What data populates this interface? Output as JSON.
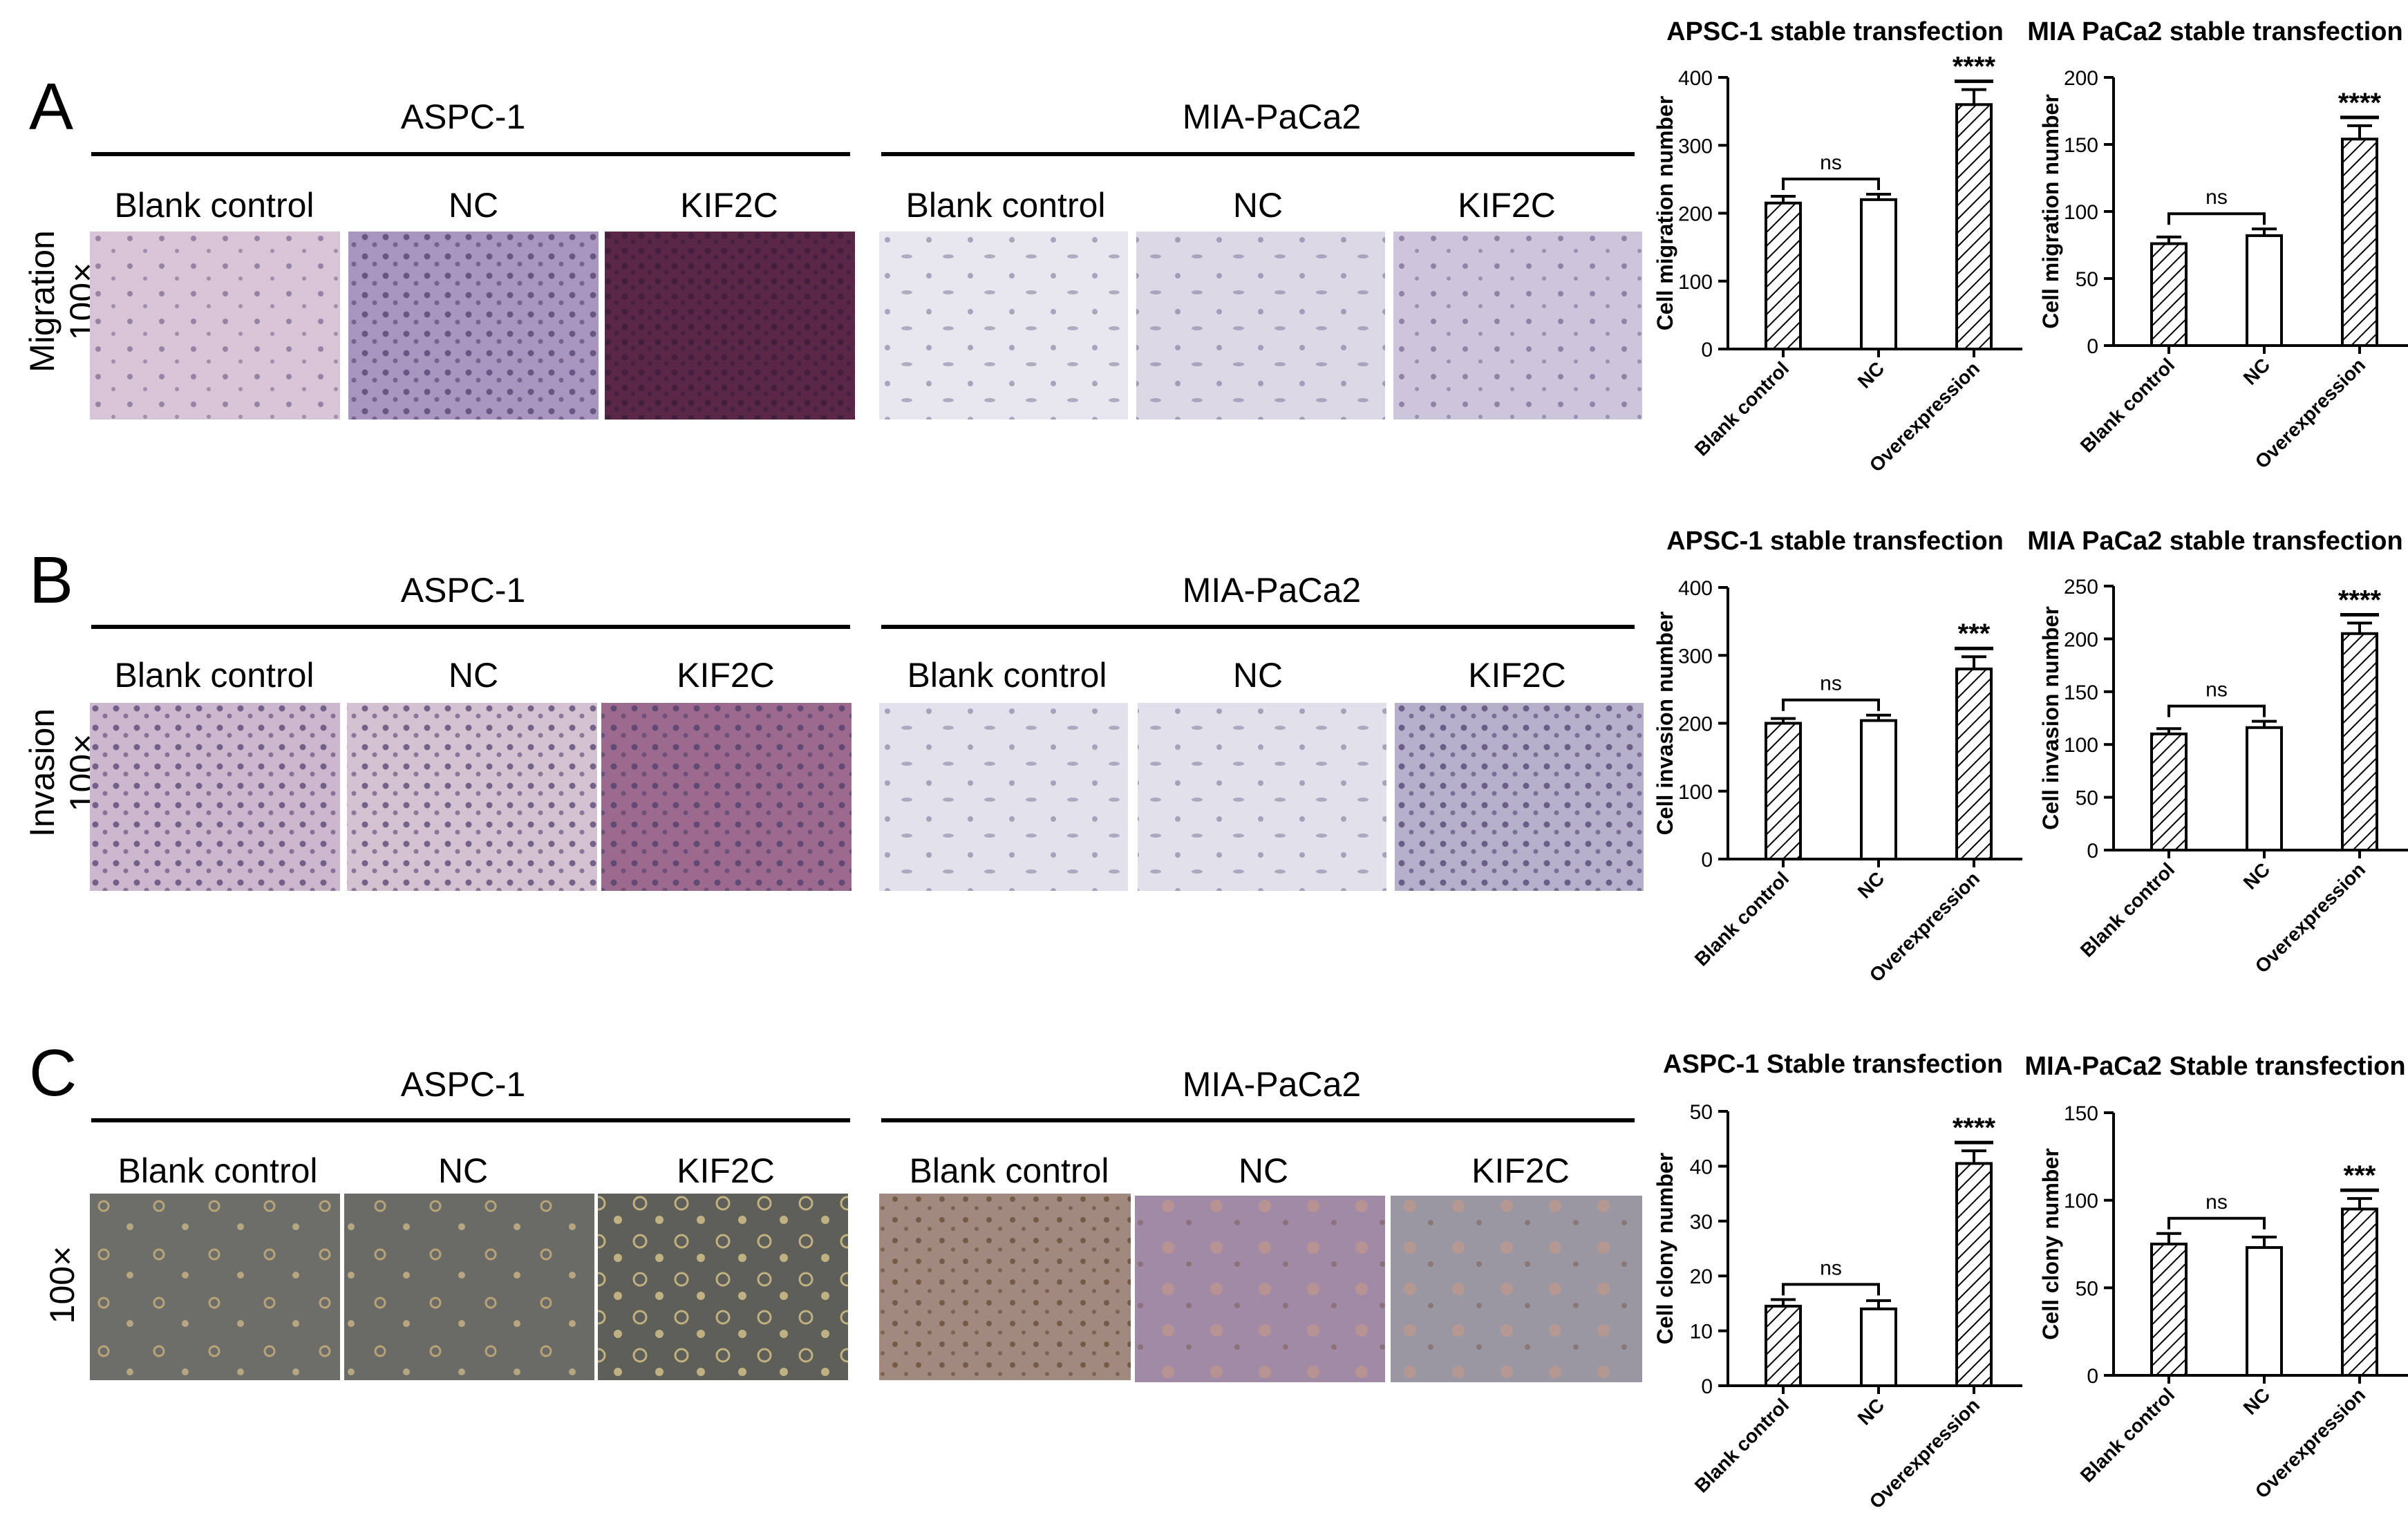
{
  "panels": [
    {
      "letter": "A",
      "row_label": [
        "Migration",
        "100×"
      ],
      "groups": [
        {
          "name": "ASPC-1",
          "columns": [
            "Blank control",
            "NC",
            "KIF2C"
          ]
        },
        {
          "name": "MIA-PaCa2",
          "columns": [
            "Blank control",
            "NC",
            "KIF2C"
          ]
        }
      ]
    },
    {
      "letter": "B",
      "row_label": [
        "Invasion",
        "100×"
      ],
      "groups": [
        {
          "name": "ASPC-1",
          "columns": [
            "Blank control",
            "NC",
            "KIF2C"
          ]
        },
        {
          "name": "MIA-PaCa2",
          "columns": [
            "Blank control",
            "NC",
            "KIF2C"
          ]
        }
      ]
    },
    {
      "letter": "C",
      "row_label": [
        "100×"
      ],
      "groups": [
        {
          "name": "ASPC-1",
          "columns": [
            "Blank control",
            "NC",
            "KIF2C"
          ]
        },
        {
          "name": "MIA-PaCa2",
          "columns": [
            "Blank control",
            "NC",
            "KIF2C"
          ]
        }
      ]
    }
  ],
  "colors": {
    "aspc_migration": [
      "#d9c3d6",
      "#a896bf",
      "#5a2747"
    ],
    "mia_migration": [
      "#e8e6ee",
      "#ddd8e6",
      "#cdc5dc"
    ],
    "aspc_invasion": [
      "#cdb7cf",
      "#d4c2d3",
      "#9c6a8e"
    ],
    "mia_invasion": [
      "#e3e2ec",
      "#e2e0ea",
      "#b6b0ca"
    ],
    "aspc_colony": [
      "#6d6d6a",
      "#6a6a66",
      "#5d5f58"
    ],
    "mia_colony": [
      "#a08a80",
      "#a08aa6",
      "#9a97a3"
    ]
  },
  "chart_data": [
    {
      "id": "A1",
      "type": "bar",
      "title": "APSC-1 stable transfection",
      "ylabel": "Cell migration number",
      "ylim": [
        0,
        400
      ],
      "yticks": [
        0,
        100,
        200,
        300,
        400
      ],
      "categories": [
        "Blank control",
        "NC",
        "Overexpression"
      ],
      "values": [
        215,
        220,
        360
      ],
      "errors": [
        10,
        8,
        22
      ],
      "annotations": {
        "ns": "ns",
        "sig": "****"
      }
    },
    {
      "id": "A2",
      "type": "bar",
      "title": "MIA PaCa2 stable transfection",
      "ylabel": "Cell migration number",
      "ylim": [
        0,
        200
      ],
      "yticks": [
        0,
        50,
        100,
        150,
        200
      ],
      "categories": [
        "Blank control",
        "NC",
        "Overexpression"
      ],
      "values": [
        76,
        82,
        154
      ],
      "errors": [
        5,
        5,
        10
      ],
      "annotations": {
        "ns": "ns",
        "sig": "****"
      }
    },
    {
      "id": "B1",
      "type": "bar",
      "title": "APSC-1 stable transfection",
      "ylabel": "Cell invasion number",
      "ylim": [
        0,
        400
      ],
      "yticks": [
        0,
        100,
        200,
        300,
        400
      ],
      "categories": [
        "Blank control",
        "NC",
        "Overexpression"
      ],
      "values": [
        200,
        204,
        280
      ],
      "errors": [
        7,
        8,
        18
      ],
      "annotations": {
        "ns": "ns",
        "sig": "***"
      }
    },
    {
      "id": "B2",
      "type": "bar",
      "title": "MIA PaCa2 stable transfection",
      "ylabel": "Cell invasion number",
      "ylim": [
        0,
        250
      ],
      "yticks": [
        0,
        50,
        100,
        150,
        200,
        250
      ],
      "categories": [
        "Blank control",
        "NC",
        "Overexpression"
      ],
      "values": [
        110,
        116,
        205
      ],
      "errors": [
        5,
        6,
        10
      ],
      "annotations": {
        "ns": "ns",
        "sig": "****"
      }
    },
    {
      "id": "C1",
      "type": "bar",
      "title": "ASPC-1 Stable transfection",
      "ylabel": "Cell clony number",
      "ylim": [
        0,
        50
      ],
      "yticks": [
        0,
        10,
        20,
        30,
        40,
        50
      ],
      "categories": [
        "Blank control",
        "NC",
        "Overexpression"
      ],
      "values": [
        14.5,
        14,
        40.5
      ],
      "errors": [
        1.2,
        1.5,
        2.3
      ],
      "annotations": {
        "ns": "ns",
        "sig": "****"
      }
    },
    {
      "id": "C2",
      "type": "bar",
      "title": "MIA-PaCa2 Stable transfection",
      "ylabel": "Cell clony number",
      "ylim": [
        0,
        150
      ],
      "yticks": [
        0,
        50,
        100,
        150
      ],
      "categories": [
        "Blank control",
        "NC",
        "Overexpression"
      ],
      "values": [
        75,
        73,
        95
      ],
      "errors": [
        6,
        6,
        6
      ],
      "annotations": {
        "ns": "ns",
        "sig": "***"
      }
    }
  ]
}
